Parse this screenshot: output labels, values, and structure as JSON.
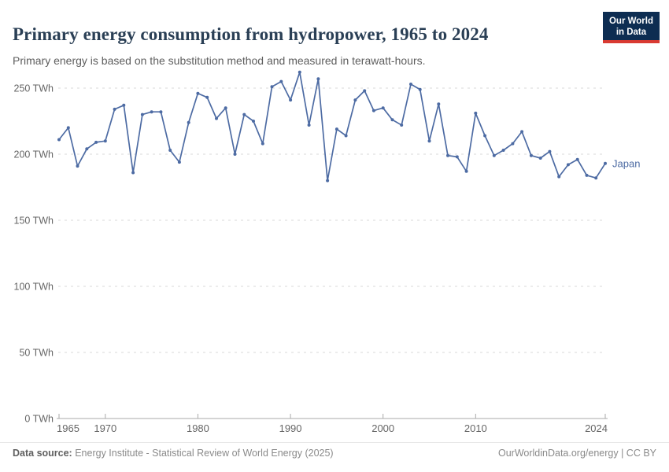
{
  "header": {
    "title": "Primary energy consumption from hydropower, 1965 to 2024",
    "subtitle": "Primary energy is based on the substitution method and measured in terawatt-hours.",
    "logo_line1": "Our World",
    "logo_line2": "in Data"
  },
  "chart_data": {
    "type": "line",
    "title": "Primary energy consumption from hydropower, 1965 to 2024",
    "unit": "TWh",
    "xlabel": "",
    "ylabel": "",
    "xlim": [
      1965,
      2024
    ],
    "ylim": [
      0,
      250
    ],
    "grid": "horizontal-dashed",
    "legend_position": "end-of-line-label",
    "x_ticks": [
      {
        "value": 1965,
        "label": "1965"
      },
      {
        "value": 1970,
        "label": "1970"
      },
      {
        "value": 1980,
        "label": "1980"
      },
      {
        "value": 1990,
        "label": "1990"
      },
      {
        "value": 2000,
        "label": "2000"
      },
      {
        "value": 2010,
        "label": "2010"
      },
      {
        "value": 2024,
        "label": "2024"
      }
    ],
    "y_ticks": [
      {
        "value": 0,
        "label": "0 TWh"
      },
      {
        "value": 50,
        "label": "50 TWh"
      },
      {
        "value": 100,
        "label": "100 TWh"
      },
      {
        "value": 150,
        "label": "150 TWh"
      },
      {
        "value": 200,
        "label": "200 TWh"
      },
      {
        "value": 250,
        "label": "250 TWh"
      }
    ],
    "series": [
      {
        "name": "Japan",
        "color": "#4d6ba3",
        "x": [
          1965,
          1966,
          1967,
          1968,
          1969,
          1970,
          1971,
          1972,
          1973,
          1974,
          1975,
          1976,
          1977,
          1978,
          1979,
          1980,
          1981,
          1982,
          1983,
          1984,
          1985,
          1986,
          1987,
          1988,
          1989,
          1990,
          1991,
          1992,
          1993,
          1994,
          1995,
          1996,
          1997,
          1998,
          1999,
          2000,
          2001,
          2002,
          2003,
          2004,
          2005,
          2006,
          2007,
          2008,
          2009,
          2010,
          2011,
          2012,
          2013,
          2014,
          2015,
          2016,
          2017,
          2018,
          2019,
          2020,
          2021,
          2022,
          2023,
          2024
        ],
        "values": [
          211,
          220,
          191,
          204,
          209,
          210,
          234,
          237,
          186,
          230,
          232,
          232,
          203,
          194,
          224,
          246,
          243,
          227,
          235,
          200,
          230,
          225,
          208,
          251,
          255,
          241,
          262,
          222,
          257,
          180,
          219,
          214,
          241,
          248,
          233,
          235,
          226,
          222,
          253,
          249,
          210,
          238,
          199,
          198,
          187,
          231,
          214,
          199,
          203,
          208,
          217,
          199,
          197,
          202,
          183,
          192,
          196,
          184,
          182,
          193
        ]
      }
    ]
  },
  "footer": {
    "source_label": "Data source:",
    "source_text": " Energy Institute - Statistical Review of World Energy (2025)",
    "credit": "OurWorldinData.org/energy | CC BY"
  },
  "colors": {
    "accent_line": "#4d6ba3",
    "logo_navy": "#0d2d52",
    "logo_red": "#d93a32",
    "gridline": "#dadada",
    "axis": "#aaaaaa",
    "tick_text": "#666666"
  }
}
